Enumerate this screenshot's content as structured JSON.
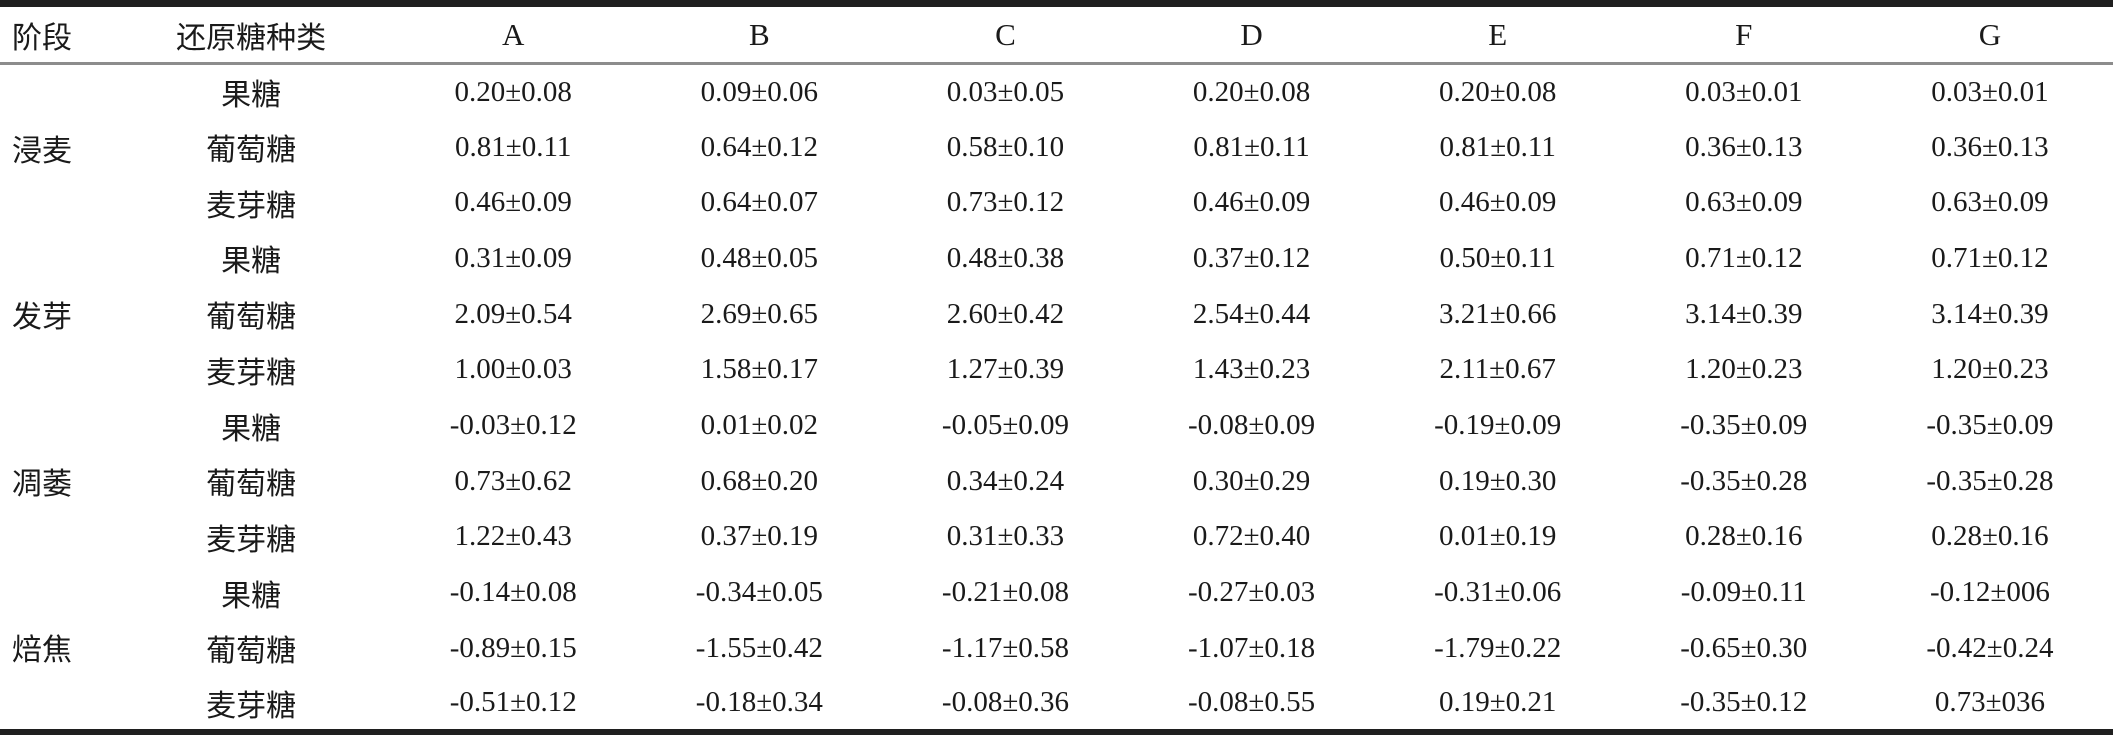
{
  "table": {
    "columns": {
      "stage_header": "阶段",
      "sugar_header": "还原糖种类",
      "sample_headers": [
        "A",
        "B",
        "C",
        "D",
        "E",
        "F",
        "G"
      ]
    },
    "groups": [
      {
        "stage": "浸麦",
        "rows": [
          {
            "sugar": "果糖",
            "values": [
              "0.20±0.08",
              "0.09±0.06",
              "0.03±0.05",
              "0.20±0.08",
              "0.20±0.08",
              "0.03±0.01",
              "0.03±0.01"
            ]
          },
          {
            "sugar": "葡萄糖",
            "values": [
              "0.81±0.11",
              "0.64±0.12",
              "0.58±0.10",
              "0.81±0.11",
              "0.81±0.11",
              "0.36±0.13",
              "0.36±0.13"
            ]
          },
          {
            "sugar": "麦芽糖",
            "values": [
              "0.46±0.09",
              "0.64±0.07",
              "0.73±0.12",
              "0.46±0.09",
              "0.46±0.09",
              "0.63±0.09",
              "0.63±0.09"
            ]
          }
        ]
      },
      {
        "stage": "发芽",
        "rows": [
          {
            "sugar": "果糖",
            "values": [
              "0.31±0.09",
              "0.48±0.05",
              "0.48±0.38",
              "0.37±0.12",
              "0.50±0.11",
              "0.71±0.12",
              "0.71±0.12"
            ]
          },
          {
            "sugar": "葡萄糖",
            "values": [
              "2.09±0.54",
              "2.69±0.65",
              "2.60±0.42",
              "2.54±0.44",
              "3.21±0.66",
              "3.14±0.39",
              "3.14±0.39"
            ]
          },
          {
            "sugar": "麦芽糖",
            "values": [
              "1.00±0.03",
              "1.58±0.17",
              "1.27±0.39",
              "1.43±0.23",
              "2.11±0.67",
              "1.20±0.23",
              "1.20±0.23"
            ]
          }
        ]
      },
      {
        "stage": "凋萎",
        "rows": [
          {
            "sugar": "果糖",
            "values": [
              "-0.03±0.12",
              "0.01±0.02",
              "-0.05±0.09",
              "-0.08±0.09",
              "-0.19±0.09",
              "-0.35±0.09",
              "-0.35±0.09"
            ]
          },
          {
            "sugar": "葡萄糖",
            "values": [
              "0.73±0.62",
              "0.68±0.20",
              "0.34±0.24",
              "0.30±0.29",
              "0.19±0.30",
              "-0.35±0.28",
              "-0.35±0.28"
            ]
          },
          {
            "sugar": "麦芽糖",
            "values": [
              "1.22±0.43",
              "0.37±0.19",
              "0.31±0.33",
              "0.72±0.40",
              "0.01±0.19",
              "0.28±0.16",
              "0.28±0.16"
            ]
          }
        ]
      },
      {
        "stage": "焙焦",
        "rows": [
          {
            "sugar": "果糖",
            "values": [
              "-0.14±0.08",
              "-0.34±0.05",
              "-0.21±0.08",
              "-0.27±0.03",
              "-0.31±0.06",
              "-0.09±0.11",
              "-0.12±006"
            ]
          },
          {
            "sugar": "葡萄糖",
            "values": [
              "-0.89±0.15",
              "-1.55±0.42",
              "-1.17±0.58",
              "-1.07±0.18",
              "-1.79±0.22",
              "-0.65±0.30",
              "-0.42±0.24"
            ]
          },
          {
            "sugar": "麦芽糖",
            "values": [
              "-0.51±0.12",
              "-0.18±0.34",
              "-0.08±0.36",
              "-0.08±0.55",
              "0.19±0.21",
              "-0.35±0.12",
              "0.73±036"
            ]
          }
        ]
      }
    ]
  },
  "colors": {
    "text": "#1a1a1a",
    "top_rule": "#1f1f1f",
    "header_rule": "#8c8c8c",
    "bottom_rule": "#1f1f1f"
  }
}
